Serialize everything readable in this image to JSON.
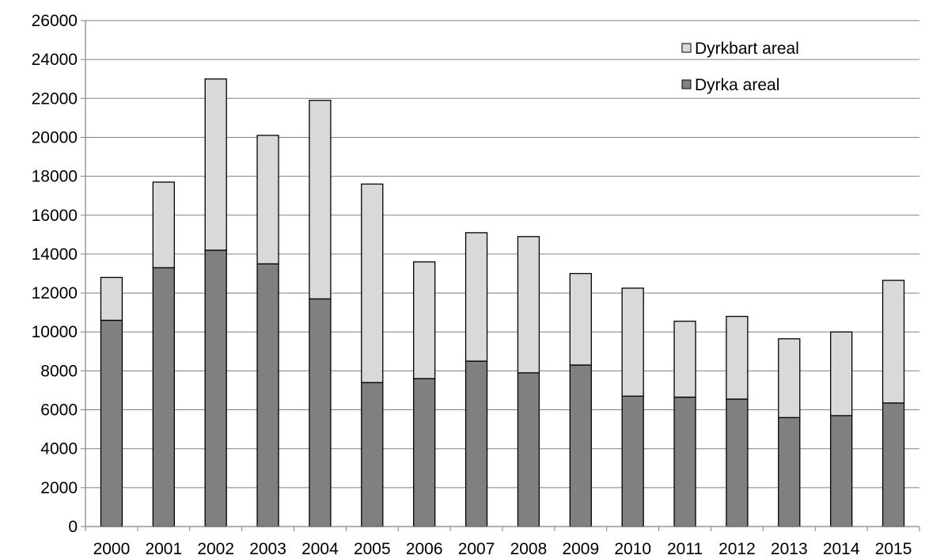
{
  "chart_data": {
    "type": "bar",
    "stacked": true,
    "title": "",
    "xlabel": "",
    "ylabel": "",
    "categories": [
      "2000",
      "2001",
      "2002",
      "2003",
      "2004",
      "2005",
      "2006",
      "2007",
      "2008",
      "2009",
      "2010",
      "2011",
      "2012",
      "2013",
      "2014",
      "2015"
    ],
    "series": [
      {
        "name": "Dyrka areal",
        "color": "#808080",
        "values": [
          10600,
          13300,
          14200,
          13500,
          11700,
          7400,
          7600,
          8500,
          7900,
          8300,
          6700,
          6650,
          6550,
          5600,
          5700,
          6350
        ]
      },
      {
        "name": "Dyrkbart areal",
        "color": "#d9d9d9",
        "values": [
          2200,
          4400,
          8800,
          6600,
          10200,
          10200,
          6000,
          6600,
          7000,
          4700,
          5550,
          3900,
          4250,
          4050,
          4300,
          6300
        ]
      }
    ],
    "ylim": [
      0,
      26000
    ],
    "yticks": [
      0,
      2000,
      4000,
      6000,
      8000,
      10000,
      12000,
      14000,
      16000,
      18000,
      20000,
      22000,
      24000,
      26000
    ],
    "grid": true,
    "legend": {
      "placement": "top-right",
      "entries": [
        "Dyrkbart areal",
        "Dyrka areal"
      ]
    }
  }
}
